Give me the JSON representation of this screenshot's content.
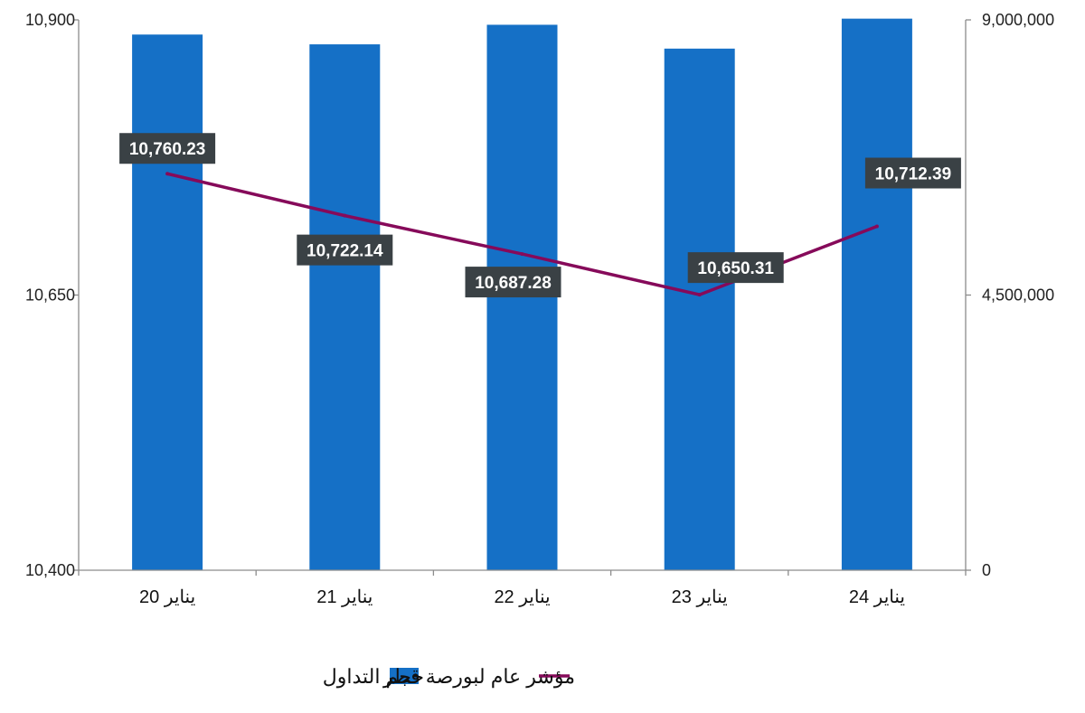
{
  "chart_data": {
    "type": "bar",
    "categories": [
      "20 يناير",
      "21 يناير",
      "22 يناير",
      "23 يناير",
      "24 يناير"
    ],
    "series": [
      {
        "name": "حجم التداول",
        "type": "bar",
        "axis": "right",
        "values": [
          8760000,
          8600000,
          8920000,
          8530000,
          9020000
        ]
      },
      {
        "name": "مؤشر عام لبورصة قطر",
        "type": "line",
        "axis": "left",
        "values": [
          10760.23,
          10722.14,
          10687.28,
          10650.31,
          10712.39
        ],
        "labels": [
          "10,760.23",
          "10,722.14",
          "10,687.28",
          "10,650.31",
          "10,712.39"
        ]
      }
    ],
    "y_left": {
      "min": 10400,
      "max": 10900,
      "ticks": [
        "10,400",
        "10,650",
        "10,900"
      ]
    },
    "y_right": {
      "min": 0,
      "max": 9000000,
      "ticks": [
        "0",
        "4,500,000",
        "9,000,000"
      ]
    },
    "grid": false,
    "legend_position": "bottom",
    "colors": {
      "bar": "#1570C6",
      "line": "#860A5A",
      "label_bg": "#3A4145",
      "axis": "#8C8C8C"
    }
  }
}
